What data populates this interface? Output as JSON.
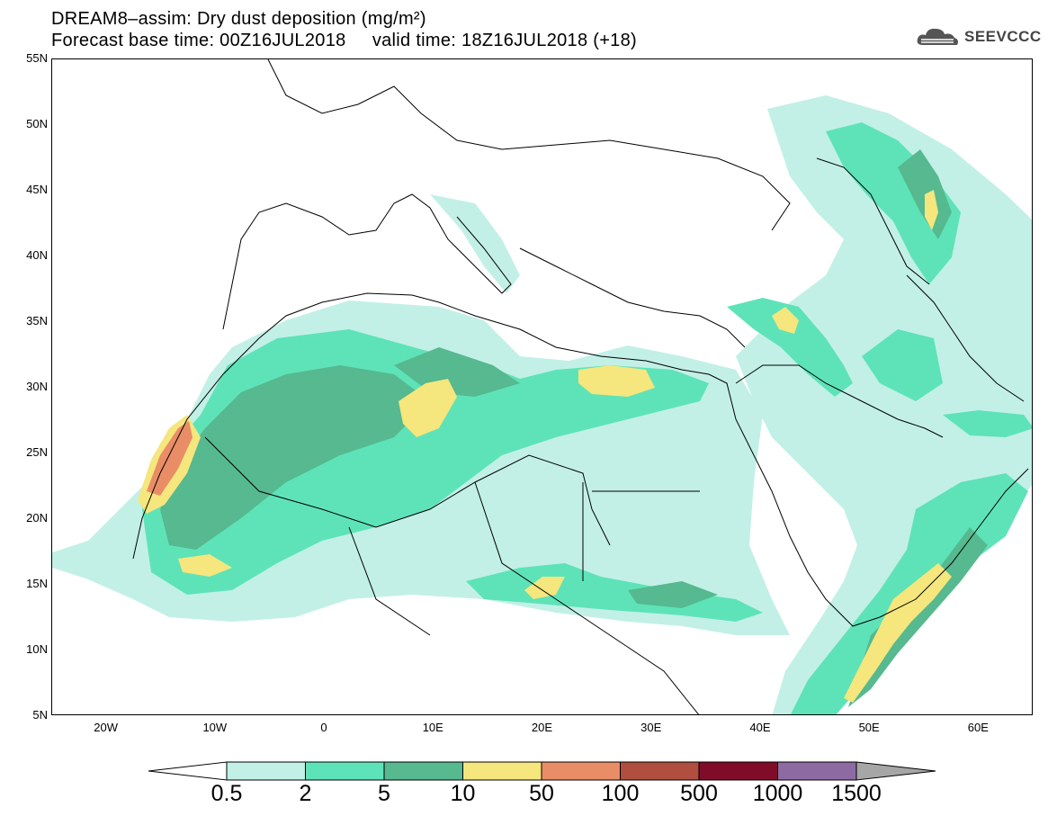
{
  "title": {
    "line1": "DREAM8–assim: Dry dust deposition (mg/m²)",
    "line2": "Forecast base time: 00Z16JUL2018     valid time: 18Z16JUL2018 (+18)"
  },
  "logo": {
    "text": "SEEVCCC",
    "icon": "cloud-icon"
  },
  "map": {
    "lat_labels": [
      "55N",
      "50N",
      "45N",
      "40N",
      "35N",
      "30N",
      "25N",
      "20N",
      "15N",
      "10N",
      "5N"
    ],
    "lon_labels": [
      "20W",
      "10W",
      "0",
      "10E",
      "20E",
      "30E",
      "40E",
      "50E",
      "60E"
    ],
    "lon_range": [
      -25,
      65
    ],
    "lat_range": [
      5,
      55
    ]
  },
  "colorbar": {
    "labels": [
      "0.5",
      "2",
      "5",
      "10",
      "50",
      "100",
      "500",
      "1000",
      "1500"
    ],
    "colors": [
      "#c2f0e6",
      "#5ee3b8",
      "#56b98f",
      "#f5e67d",
      "#e98d67",
      "#b04e3f",
      "#800c2a",
      "#8e6aa3",
      "#a6a6a6"
    ]
  }
}
